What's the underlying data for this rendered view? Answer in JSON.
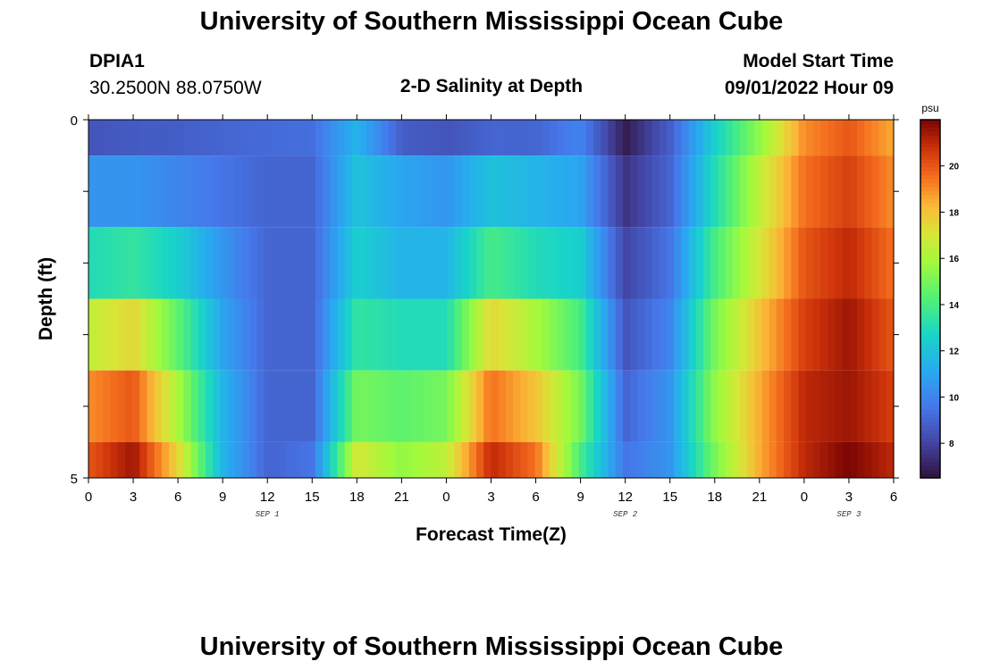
{
  "page_title": "University of Southern Mississippi Ocean Cube",
  "footer_title": "University of Southern Mississippi Ocean Cube",
  "station": {
    "id": "DPIA1",
    "coords": "30.2500N  88.0750W"
  },
  "plot_title": "2-D Salinity at Depth",
  "model_start": {
    "label": "Model Start Time",
    "value": "09/01/2022 Hour 09"
  },
  "chart_data": {
    "type": "heatmap",
    "title": "2-D Salinity at Depth",
    "xlabel": "Forecast Time(Z)",
    "ylabel": "Depth (ft)",
    "colorbar_unit": "psu",
    "y_tick_labels": [
      "0",
      "5"
    ],
    "y_range": [
      0,
      5
    ],
    "x_tick_labels": [
      "0",
      "3",
      "6",
      "9",
      "12",
      "15",
      "18",
      "21",
      "0",
      "3",
      "6",
      "9",
      "12",
      "15",
      "18",
      "21",
      "0",
      "3",
      "6"
    ],
    "date_labels": [
      {
        "text": "SEP 1",
        "hour": 12
      },
      {
        "text": "SEP 2",
        "hour": 36
      },
      {
        "text": "SEP 3",
        "hour": 51
      }
    ],
    "x_range_hours": [
      0,
      54
    ],
    "colorbar": {
      "min": 6.5,
      "max": 22,
      "ticks": [
        8,
        10,
        12,
        14,
        16,
        18,
        20
      ]
    },
    "hours": [
      0,
      3,
      6,
      9,
      12,
      15,
      18,
      21,
      24,
      27,
      30,
      33,
      36,
      39,
      42,
      45,
      48,
      51,
      54
    ],
    "layers": [
      {
        "depth_range": [
          0,
          0.5
        ],
        "values": [
          8.5,
          8.7,
          8.8,
          9.0,
          9.2,
          9.3,
          11.5,
          8.8,
          8.5,
          9.0,
          9.0,
          10.0,
          6.8,
          8.8,
          12.5,
          15.5,
          19.0,
          20.0,
          18.5
        ]
      },
      {
        "depth_range": [
          0.5,
          1.5
        ],
        "values": [
          10.5,
          10.5,
          10.0,
          9.5,
          9.0,
          9.0,
          12.0,
          11.0,
          10.5,
          12.0,
          11.5,
          11.0,
          7.5,
          9.0,
          13.0,
          16.5,
          19.5,
          20.5,
          19.0
        ]
      },
      {
        "depth_range": [
          1.5,
          2.5
        ],
        "values": [
          13.0,
          13.5,
          12.5,
          10.5,
          9.0,
          9.0,
          12.5,
          11.5,
          11.5,
          14.0,
          13.0,
          12.5,
          8.0,
          9.5,
          14.0,
          17.0,
          20.0,
          21.0,
          19.5
        ]
      },
      {
        "depth_range": [
          2.5,
          3.5
        ],
        "values": [
          16.5,
          17.5,
          14.5,
          11.0,
          9.0,
          9.0,
          13.5,
          13.0,
          13.0,
          17.5,
          16.0,
          14.0,
          8.5,
          10.0,
          15.0,
          18.0,
          20.5,
          21.5,
          20.0
        ]
      },
      {
        "depth_range": [
          3.5,
          4.5
        ],
        "values": [
          19.0,
          20.0,
          16.0,
          11.5,
          9.0,
          9.0,
          15.0,
          14.5,
          15.0,
          19.5,
          18.0,
          15.0,
          9.0,
          10.5,
          15.5,
          18.5,
          21.0,
          21.5,
          20.5
        ]
      },
      {
        "depth_range": [
          4.5,
          5.0
        ],
        "values": [
          20.0,
          21.5,
          17.5,
          11.5,
          9.0,
          9.5,
          17.0,
          15.5,
          16.5,
          21.0,
          19.5,
          14.0,
          9.5,
          10.5,
          15.0,
          18.5,
          21.0,
          22.0,
          21.0
        ]
      }
    ]
  }
}
